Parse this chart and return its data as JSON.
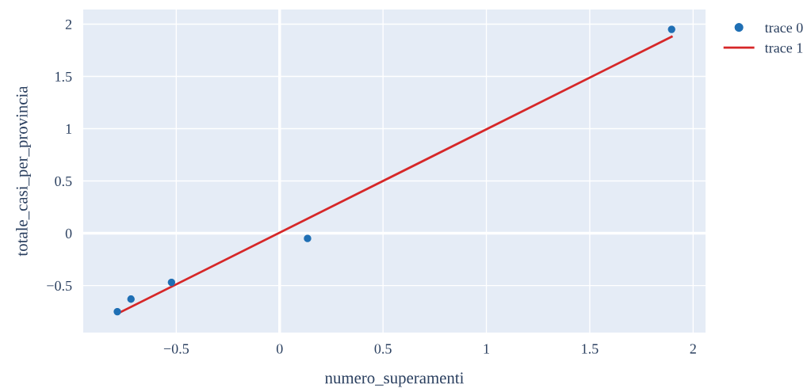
{
  "chart_data": {
    "type": "scatter",
    "xlabel": "numero_superamenti",
    "ylabel": "totale_casi_per_provincia",
    "series": [
      {
        "name": "trace 0",
        "color": "#1f6fb4",
        "marker": "circle",
        "x": [
          -0.785,
          -0.719,
          -0.523,
          0.135,
          1.896
        ],
        "values": [
          -0.75,
          -0.63,
          -0.47,
          -0.05,
          1.95
        ]
      },
      {
        "name": "trace 1",
        "type": "line",
        "color": "#d62728",
        "marker": "none",
        "line_style": "solid",
        "x": [
          -0.785,
          1.896
        ],
        "values": [
          -0.77,
          1.88
        ]
      }
    ],
    "xlim": [
      -0.95,
      2.06
    ],
    "ylim": [
      -0.95,
      2.14
    ],
    "xticks": [
      {
        "value": -0.5,
        "label": "−0.5"
      },
      0,
      0.5,
      1,
      1.5,
      2
    ],
    "yticks": [
      {
        "value": -0.5,
        "label": "−0.5"
      },
      0,
      0.5,
      1,
      1.5,
      2
    ],
    "grid": true,
    "legend": "top right"
  }
}
